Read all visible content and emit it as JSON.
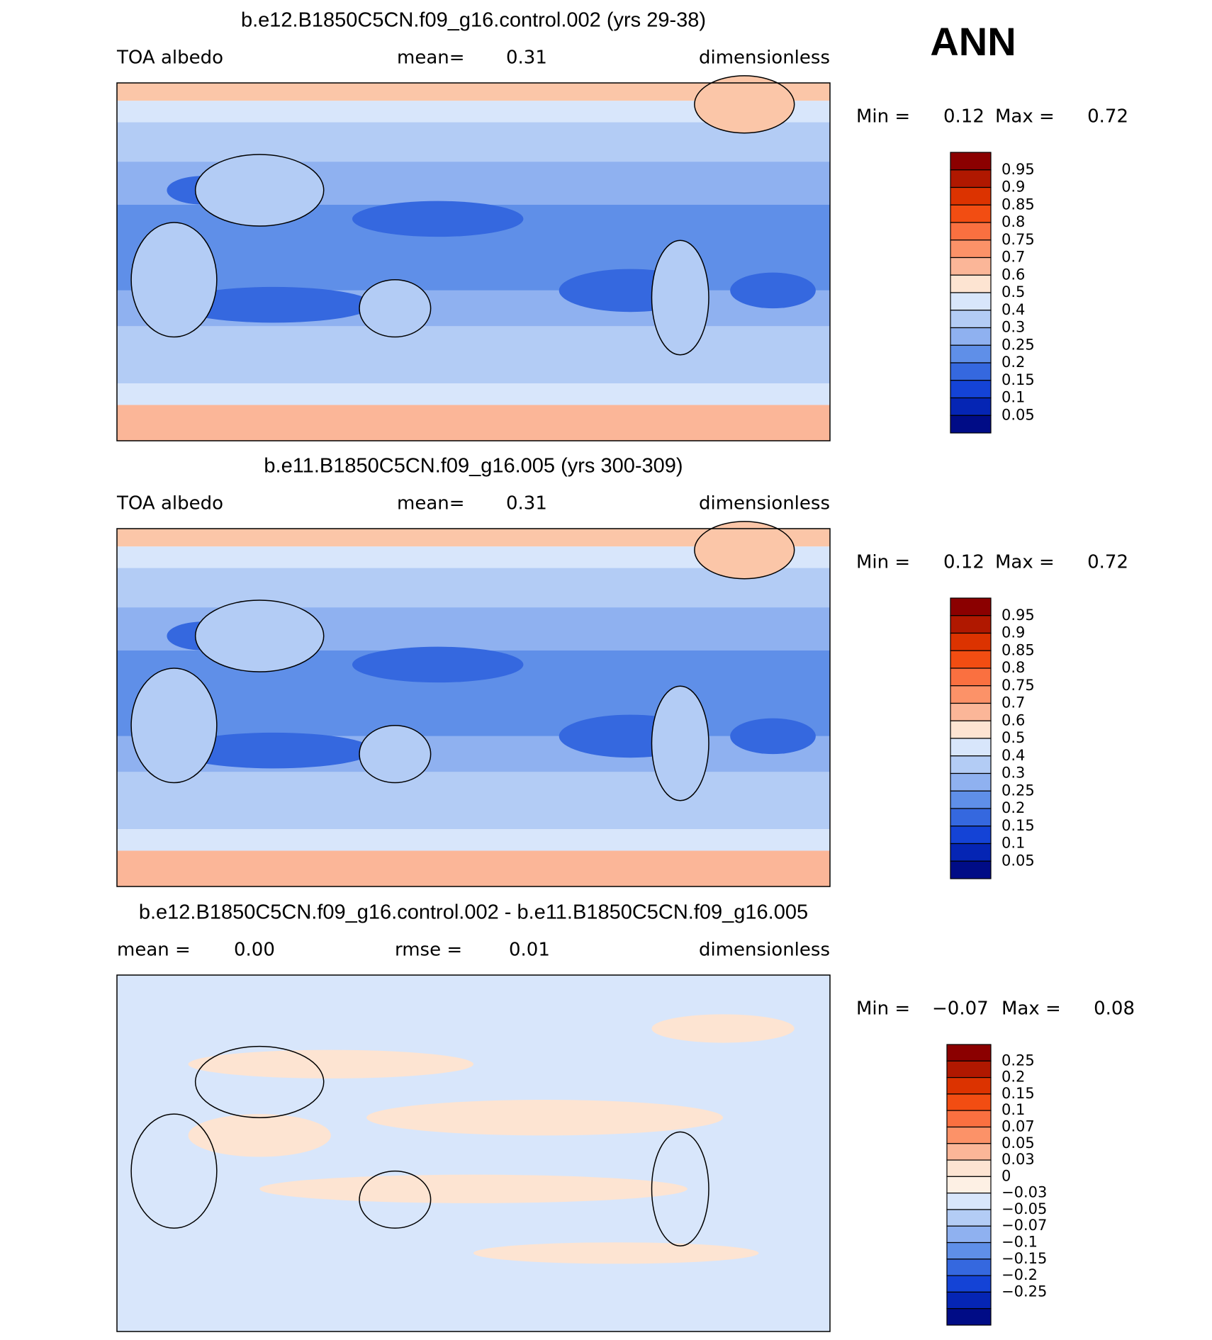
{
  "header": {
    "season": "ANN"
  },
  "panels": [
    {
      "title": "b.e12.B1850C5CN.f09_g16.control.002 (yrs 29-38)",
      "left_label": "TOA albedo",
      "stat1_label": "mean=",
      "stat1_value": "0.31",
      "units": "dimensionless",
      "min_label": "Min =",
      "min_value": "0.12",
      "max_label": "Max =",
      "max_value": "0.72",
      "colorbar": {
        "labels": [
          "0.95",
          "0.9",
          "0.85",
          "0.8",
          "0.75",
          "0.7",
          "0.6",
          "0.5",
          "0.4",
          "0.3",
          "0.25",
          "0.2",
          "0.15",
          "0.1",
          "0.05"
        ],
        "colors": [
          "#8b0000",
          "#b01800",
          "#dc3300",
          "#f24d12",
          "#fa7040",
          "#fc9268",
          "#fbb698",
          "#fde4d2",
          "#d8e6fb",
          "#b3ccf5",
          "#8fb1f0",
          "#5f8fe8",
          "#3568df",
          "#1443d6",
          "#0525b4",
          "#000c86"
        ]
      }
    },
    {
      "title": "b.e11.B1850C5CN.f09_g16.005 (yrs 300-309)",
      "left_label": "TOA albedo",
      "stat1_label": "mean=",
      "stat1_value": "0.31",
      "units": "dimensionless",
      "min_label": "Min =",
      "min_value": "0.12",
      "max_label": "Max =",
      "max_value": "0.72",
      "colorbar": {
        "labels": [
          "0.95",
          "0.9",
          "0.85",
          "0.8",
          "0.75",
          "0.7",
          "0.6",
          "0.5",
          "0.4",
          "0.3",
          "0.25",
          "0.2",
          "0.15",
          "0.1",
          "0.05"
        ],
        "colors": [
          "#8b0000",
          "#b01800",
          "#dc3300",
          "#f24d12",
          "#fa7040",
          "#fc9268",
          "#fbb698",
          "#fde4d2",
          "#d8e6fb",
          "#b3ccf5",
          "#8fb1f0",
          "#5f8fe8",
          "#3568df",
          "#1443d6",
          "#0525b4",
          "#000c86"
        ]
      }
    },
    {
      "title": "b.e12.B1850C5CN.f09_g16.control.002 - b.e11.B1850C5CN.f09_g16.005",
      "stat1_label": "mean =",
      "stat1_value": "0.00",
      "stat2_label": "rmse =",
      "stat2_value": "0.01",
      "units": "dimensionless",
      "min_label": "Min =",
      "min_value": "−0.07",
      "max_label": "Max =",
      "max_value": "0.08",
      "colorbar": {
        "labels": [
          "0.25",
          "0.2",
          "0.15",
          "0.1",
          "0.07",
          "0.05",
          "0.03",
          "0",
          "−0.03",
          "−0.05",
          "−0.07",
          "−0.1",
          "−0.15",
          "−0.2",
          "−0.25"
        ],
        "colors": [
          "#8b0000",
          "#b01800",
          "#dc3300",
          "#f24d12",
          "#fa7040",
          "#fc9268",
          "#fbb698",
          "#fde4d2",
          "#fdf0e4",
          "#d8e6fb",
          "#b3ccf5",
          "#8fb1f0",
          "#5f8fe8",
          "#3568df",
          "#1443d6",
          "#0525b4",
          "#000c86"
        ]
      }
    }
  ]
}
